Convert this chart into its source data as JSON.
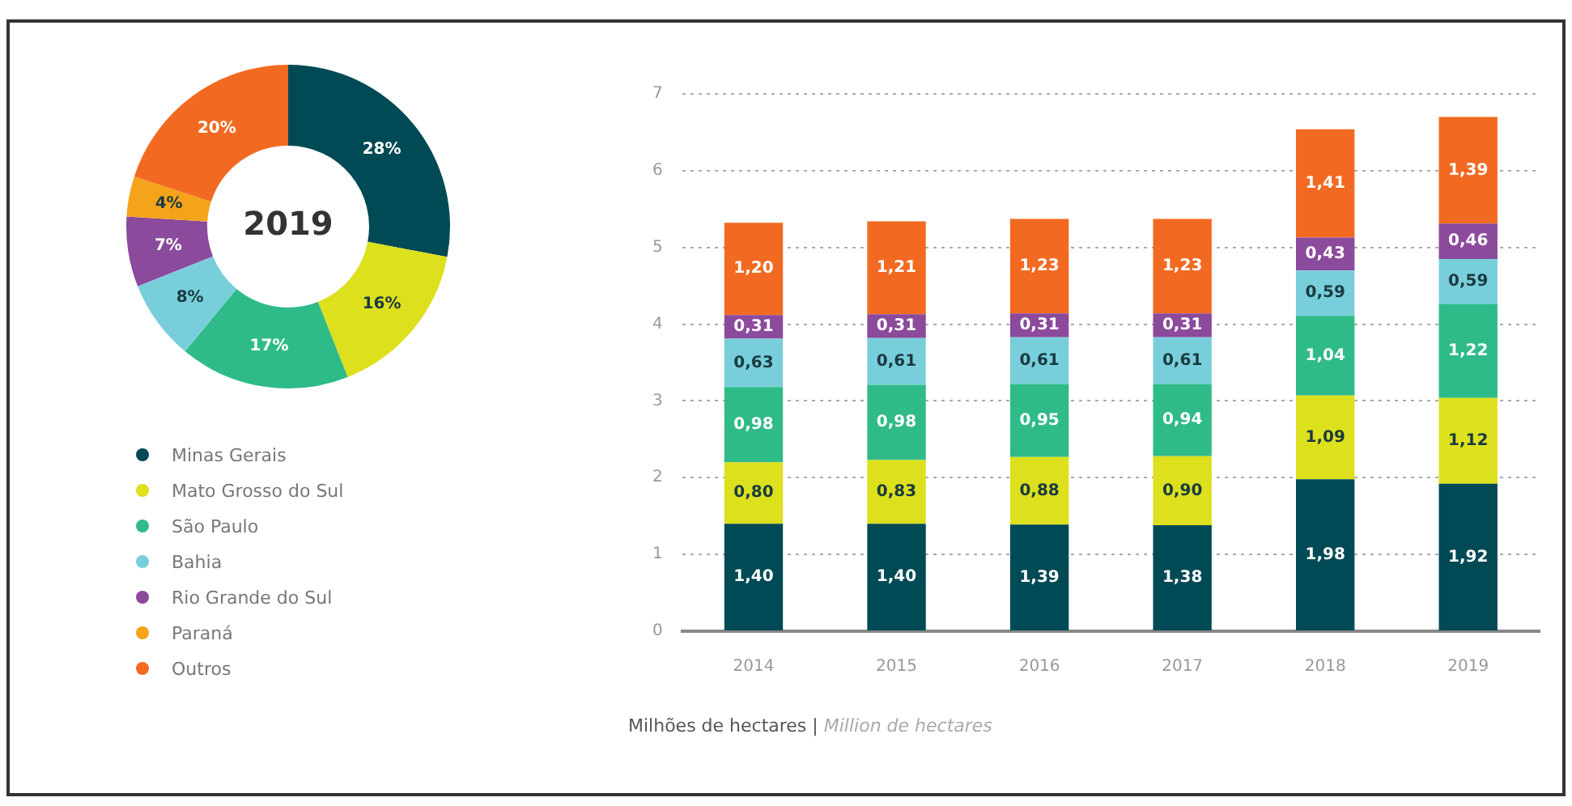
{
  "chart_data": [
    {
      "type": "donut",
      "title": "2019",
      "categories": [
        "Minas Gerais",
        "Mato Grosso do Sul",
        "São Paulo",
        "Bahia",
        "Rio Grande do Sul",
        "Paraná",
        "Outros"
      ],
      "values": [
        28,
        16,
        17,
        8,
        7,
        4,
        20
      ],
      "value_labels": [
        "28%",
        "16%",
        "17%",
        "8%",
        "7%",
        "4%",
        "20%"
      ],
      "colors": [
        "#004a55",
        "#dde01c",
        "#2fbb88",
        "#78cfdb",
        "#8b4a9c",
        "#f5a31a",
        "#f26a21"
      ],
      "legend": "bottom"
    },
    {
      "type": "bar",
      "stacked": true,
      "categories": [
        "2014",
        "2015",
        "2016",
        "2017",
        "2018",
        "2019"
      ],
      "ylim": [
        0,
        7
      ],
      "yticks": [
        0,
        1,
        2,
        3,
        4,
        5,
        6,
        7
      ],
      "grid": "y",
      "annotations": [
        "Milhões de hectares | Million de hectares"
      ],
      "series": [
        {
          "color": "#004a55",
          "values": [
            1.4,
            1.4,
            1.39,
            1.38,
            1.98,
            1.92
          ],
          "value_labels": [
            "1,40",
            "1,40",
            "1,39",
            "1,38",
            "1,98",
            "1,92"
          ]
        },
        {
          "color": "#dde01c",
          "values": [
            0.8,
            0.83,
            0.88,
            0.9,
            1.09,
            1.12
          ],
          "value_labels": [
            "0,80",
            "0,83",
            "0,88",
            "0,90",
            "1,09",
            "1,12"
          ]
        },
        {
          "color": "#2fbb88",
          "values": [
            0.98,
            0.98,
            0.95,
            0.94,
            1.04,
            1.22
          ],
          "value_labels": [
            "0,98",
            "0,98",
            "0,95",
            "0,94",
            "1,04",
            "1,22"
          ]
        },
        {
          "color": "#78cfdb",
          "values": [
            0.63,
            0.61,
            0.61,
            0.61,
            0.59,
            0.59
          ],
          "value_labels": [
            "0,63",
            "0,61",
            "0,61",
            "0,61",
            "0,59",
            "0,59"
          ]
        },
        {
          "color": "#8b4a9c",
          "values": [
            0.31,
            0.31,
            0.31,
            0.31,
            0.43,
            0.46
          ],
          "value_labels": [
            "0,31",
            "0,31",
            "0,31",
            "0,31",
            "0,43",
            "0,46"
          ]
        },
        {
          "color": "#f26a21",
          "values": [
            1.2,
            1.21,
            1.23,
            1.23,
            1.41,
            1.39
          ],
          "value_labels": [
            "1,20",
            "1,21",
            "1,23",
            "1,23",
            "1,41",
            "1,39"
          ]
        }
      ]
    }
  ]
}
